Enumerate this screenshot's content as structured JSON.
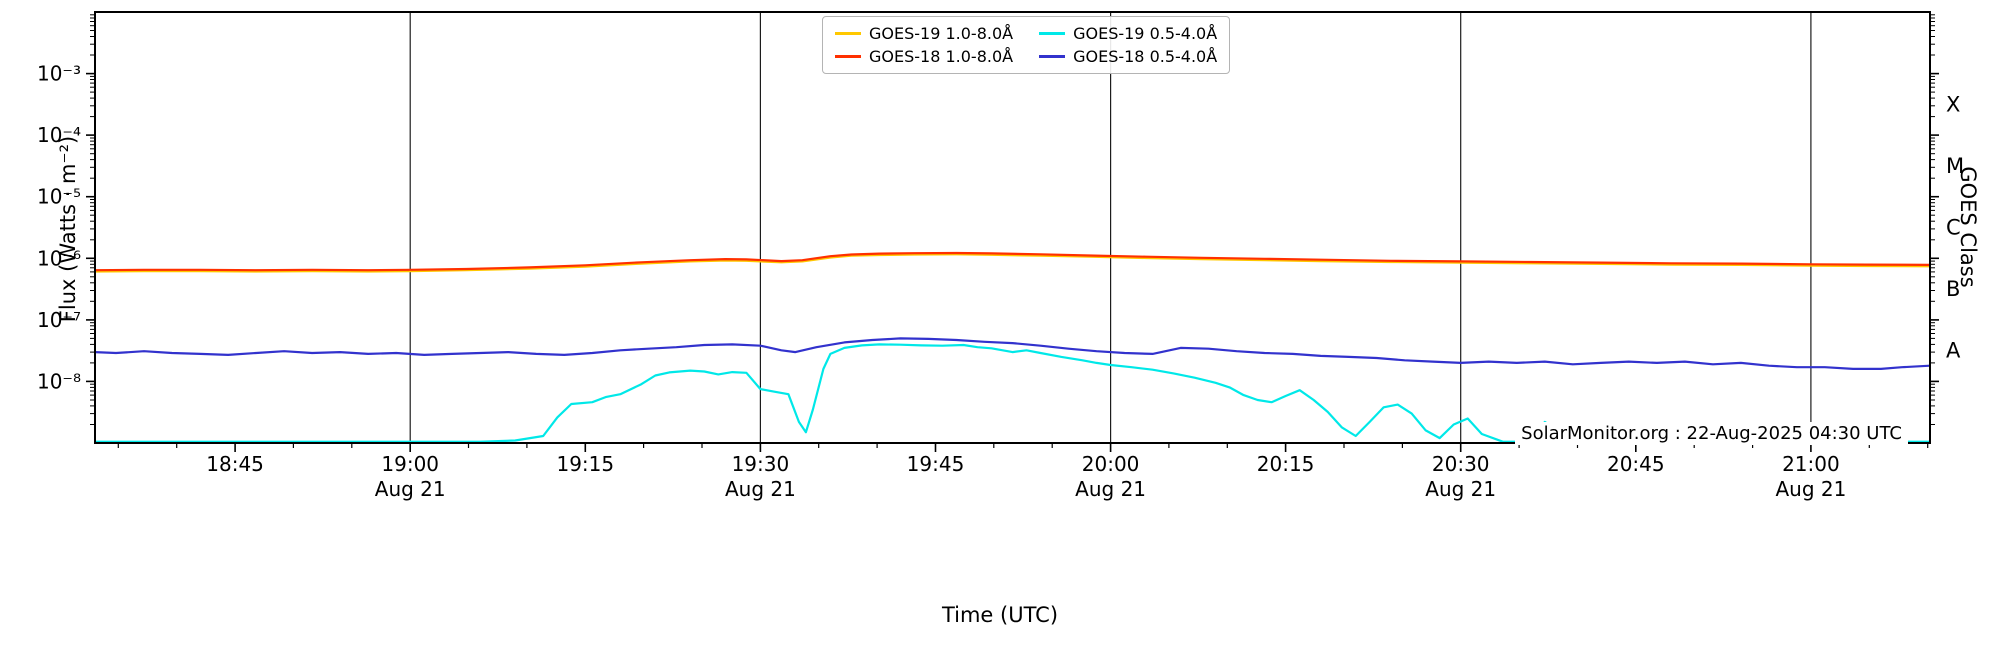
{
  "watermark": "SolarMonitor.org : 22-Aug-2025 04:30 UTC",
  "chart_data": {
    "type": "line",
    "title": "",
    "xlabel": "Time (UTC)",
    "ylabel": "Flux (Watts · m⁻²)",
    "ylabel_right": "GOES Class",
    "grid": "vertical lines at 30-minute ticks only",
    "legend_position": "upper center, 2 columns",
    "xlim": [
      18.55,
      21.17
    ],
    "ylim": [
      1e-09,
      0.01
    ],
    "y_scale": "log",
    "x_ticks": [
      {
        "t": 18.75,
        "label": "18:45",
        "sub": ""
      },
      {
        "t": 19.0,
        "label": "19:00",
        "sub": "Aug 21"
      },
      {
        "t": 19.25,
        "label": "19:15",
        "sub": ""
      },
      {
        "t": 19.5,
        "label": "19:30",
        "sub": "Aug 21"
      },
      {
        "t": 19.75,
        "label": "19:45",
        "sub": ""
      },
      {
        "t": 20.0,
        "label": "20:00",
        "sub": "Aug 21"
      },
      {
        "t": 20.25,
        "label": "20:15",
        "sub": ""
      },
      {
        "t": 20.5,
        "label": "20:30",
        "sub": "Aug 21"
      },
      {
        "t": 20.75,
        "label": "20:45",
        "sub": ""
      },
      {
        "t": 21.0,
        "label": "21:00",
        "sub": "Aug 21"
      }
    ],
    "y_ticks": [
      {
        "v": 0.001,
        "label": "10⁻³"
      },
      {
        "v": 0.0001,
        "label": "10⁻⁴"
      },
      {
        "v": 1e-05,
        "label": "10⁻⁵"
      },
      {
        "v": 1e-06,
        "label": "10⁻⁶"
      },
      {
        "v": 1e-07,
        "label": "10⁻⁷"
      },
      {
        "v": 1e-08,
        "label": "10⁻⁸"
      }
    ],
    "goes_classes": [
      {
        "label": "X",
        "v": 0.000316
      },
      {
        "label": "M",
        "v": 3.16e-05
      },
      {
        "label": "C",
        "v": 3.16e-06
      },
      {
        "label": "B",
        "v": 3.16e-07
      },
      {
        "label": "A",
        "v": 3.16e-08
      }
    ],
    "series": [
      {
        "name": "GOES-19 1.0-8.0Å",
        "color": "#ffc800",
        "points": [
          [
            18.55,
            6.1e-07
          ],
          [
            18.62,
            6.2e-07
          ],
          [
            18.7,
            6.2e-07
          ],
          [
            18.78,
            6.1e-07
          ],
          [
            18.86,
            6.2e-07
          ],
          [
            18.94,
            6.1e-07
          ],
          [
            19.0,
            6.2e-07
          ],
          [
            19.08,
            6.4e-07
          ],
          [
            19.17,
            6.8e-07
          ],
          [
            19.25,
            7.3e-07
          ],
          [
            19.33,
            8.2e-07
          ],
          [
            19.4,
            8.9e-07
          ],
          [
            19.45,
            9.2e-07
          ],
          [
            19.48,
            9.1e-07
          ],
          [
            19.53,
            8.6e-07
          ],
          [
            19.56,
            8.9e-07
          ],
          [
            19.6,
            1.03e-06
          ],
          [
            19.63,
            1.1e-06
          ],
          [
            19.67,
            1.13e-06
          ],
          [
            19.72,
            1.15e-06
          ],
          [
            19.78,
            1.16e-06
          ],
          [
            19.83,
            1.14e-06
          ],
          [
            19.9,
            1.1e-06
          ],
          [
            19.97,
            1.06e-06
          ],
          [
            20.05,
            1.01e-06
          ],
          [
            20.13,
            9.7e-07
          ],
          [
            20.22,
            9.3e-07
          ],
          [
            20.3,
            9e-07
          ],
          [
            20.4,
            8.7e-07
          ],
          [
            20.5,
            8.5e-07
          ],
          [
            20.6,
            8.3e-07
          ],
          [
            20.7,
            8.1e-07
          ],
          [
            20.8,
            7.9e-07
          ],
          [
            20.9,
            7.8e-07
          ],
          [
            21.0,
            7.6e-07
          ],
          [
            21.08,
            7.5e-07
          ],
          [
            21.17,
            7.4e-07
          ]
        ]
      },
      {
        "name": "GOES-18 1.0-8.0Å",
        "color": "#ff3000",
        "points": [
          [
            18.55,
            6.4e-07
          ],
          [
            18.62,
            6.5e-07
          ],
          [
            18.7,
            6.5e-07
          ],
          [
            18.78,
            6.4e-07
          ],
          [
            18.86,
            6.5e-07
          ],
          [
            18.94,
            6.4e-07
          ],
          [
            19.0,
            6.5e-07
          ],
          [
            19.08,
            6.7e-07
          ],
          [
            19.17,
            7.1e-07
          ],
          [
            19.25,
            7.7e-07
          ],
          [
            19.33,
            8.6e-07
          ],
          [
            19.4,
            9.3e-07
          ],
          [
            19.45,
            9.7e-07
          ],
          [
            19.48,
            9.6e-07
          ],
          [
            19.53,
            9e-07
          ],
          [
            19.56,
            9.3e-07
          ],
          [
            19.6,
            1.08e-06
          ],
          [
            19.63,
            1.15e-06
          ],
          [
            19.67,
            1.19e-06
          ],
          [
            19.72,
            1.21e-06
          ],
          [
            19.78,
            1.22e-06
          ],
          [
            19.83,
            1.2e-06
          ],
          [
            19.9,
            1.16e-06
          ],
          [
            19.97,
            1.11e-06
          ],
          [
            20.05,
            1.06e-06
          ],
          [
            20.13,
            1.02e-06
          ],
          [
            20.22,
            9.8e-07
          ],
          [
            20.3,
            9.5e-07
          ],
          [
            20.4,
            9.1e-07
          ],
          [
            20.5,
            8.9e-07
          ],
          [
            20.6,
            8.7e-07
          ],
          [
            20.7,
            8.5e-07
          ],
          [
            20.8,
            8.3e-07
          ],
          [
            20.9,
            8.2e-07
          ],
          [
            21.0,
            8e-07
          ],
          [
            21.08,
            7.9e-07
          ],
          [
            21.17,
            7.8e-07
          ]
        ]
      },
      {
        "name": "GOES-19 0.5-4.0Å",
        "color": "#00e8e8",
        "points": [
          [
            18.55,
            1.05e-09
          ],
          [
            19.1,
            1.05e-09
          ],
          [
            19.15,
            1.1e-09
          ],
          [
            19.19,
            1.3e-09
          ],
          [
            19.21,
            2.6e-09
          ],
          [
            19.23,
            4.3e-09
          ],
          [
            19.26,
            4.6e-09
          ],
          [
            19.28,
            5.6e-09
          ],
          [
            19.3,
            6.2e-09
          ],
          [
            19.33,
            9e-09
          ],
          [
            19.35,
            1.25e-08
          ],
          [
            19.37,
            1.4e-08
          ],
          [
            19.4,
            1.5e-08
          ],
          [
            19.42,
            1.45e-08
          ],
          [
            19.44,
            1.3e-08
          ],
          [
            19.46,
            1.42e-08
          ],
          [
            19.48,
            1.38e-08
          ],
          [
            19.5,
            7.5e-09
          ],
          [
            19.52,
            6.8e-09
          ],
          [
            19.54,
            6.2e-09
          ],
          [
            19.555,
            2.2e-09
          ],
          [
            19.565,
            1.5e-09
          ],
          [
            19.575,
            3.5e-09
          ],
          [
            19.59,
            1.6e-08
          ],
          [
            19.6,
            2.8e-08
          ],
          [
            19.62,
            3.5e-08
          ],
          [
            19.645,
            3.85e-08
          ],
          [
            19.67,
            4e-08
          ],
          [
            19.7,
            3.95e-08
          ],
          [
            19.73,
            3.85e-08
          ],
          [
            19.76,
            3.8e-08
          ],
          [
            19.79,
            3.9e-08
          ],
          [
            19.81,
            3.6e-08
          ],
          [
            19.83,
            3.45e-08
          ],
          [
            19.86,
            3e-08
          ],
          [
            19.88,
            3.2e-08
          ],
          [
            19.9,
            2.9e-08
          ],
          [
            19.93,
            2.5e-08
          ],
          [
            19.96,
            2.2e-08
          ],
          [
            19.98,
            2e-08
          ],
          [
            20.0,
            1.85e-08
          ],
          [
            20.03,
            1.7e-08
          ],
          [
            20.06,
            1.55e-08
          ],
          [
            20.09,
            1.35e-08
          ],
          [
            20.12,
            1.15e-08
          ],
          [
            20.15,
            9.5e-09
          ],
          [
            20.17,
            8e-09
          ],
          [
            20.19,
            6e-09
          ],
          [
            20.21,
            5e-09
          ],
          [
            20.23,
            4.6e-09
          ],
          [
            20.25,
            5.8e-09
          ],
          [
            20.27,
            7.2e-09
          ],
          [
            20.29,
            5e-09
          ],
          [
            20.31,
            3.2e-09
          ],
          [
            20.33,
            1.8e-09
          ],
          [
            20.35,
            1.3e-09
          ],
          [
            20.37,
            2.2e-09
          ],
          [
            20.39,
            3.8e-09
          ],
          [
            20.41,
            4.2e-09
          ],
          [
            20.43,
            3e-09
          ],
          [
            20.45,
            1.6e-09
          ],
          [
            20.47,
            1.2e-09
          ],
          [
            20.49,
            2e-09
          ],
          [
            20.51,
            2.5e-09
          ],
          [
            20.53,
            1.4e-09
          ],
          [
            20.56,
            1.05e-09
          ],
          [
            20.6,
            1.05e-09
          ],
          [
            20.62,
            2.2e-09
          ],
          [
            20.64,
            1.6e-09
          ],
          [
            20.67,
            1.05e-09
          ],
          [
            20.8,
            1.05e-09
          ],
          [
            21.17,
            1.05e-09
          ]
        ]
      },
      {
        "name": "GOES-18 0.5-4.0Å",
        "color": "#3232cd",
        "points": [
          [
            18.55,
            3e-08
          ],
          [
            18.58,
            2.9e-08
          ],
          [
            18.62,
            3.1e-08
          ],
          [
            18.66,
            2.9e-08
          ],
          [
            18.7,
            2.8e-08
          ],
          [
            18.74,
            2.7e-08
          ],
          [
            18.78,
            2.9e-08
          ],
          [
            18.82,
            3.1e-08
          ],
          [
            18.86,
            2.9e-08
          ],
          [
            18.9,
            3e-08
          ],
          [
            18.94,
            2.8e-08
          ],
          [
            18.98,
            2.9e-08
          ],
          [
            19.02,
            2.7e-08
          ],
          [
            19.06,
            2.8e-08
          ],
          [
            19.1,
            2.9e-08
          ],
          [
            19.14,
            3e-08
          ],
          [
            19.18,
            2.8e-08
          ],
          [
            19.22,
            2.7e-08
          ],
          [
            19.26,
            2.9e-08
          ],
          [
            19.3,
            3.2e-08
          ],
          [
            19.34,
            3.4e-08
          ],
          [
            19.38,
            3.6e-08
          ],
          [
            19.42,
            3.9e-08
          ],
          [
            19.46,
            4e-08
          ],
          [
            19.5,
            3.8e-08
          ],
          [
            19.53,
            3.2e-08
          ],
          [
            19.55,
            3e-08
          ],
          [
            19.58,
            3.6e-08
          ],
          [
            19.62,
            4.3e-08
          ],
          [
            19.66,
            4.7e-08
          ],
          [
            19.7,
            5e-08
          ],
          [
            19.74,
            4.9e-08
          ],
          [
            19.78,
            4.7e-08
          ],
          [
            19.82,
            4.4e-08
          ],
          [
            19.86,
            4.2e-08
          ],
          [
            19.9,
            3.8e-08
          ],
          [
            19.94,
            3.4e-08
          ],
          [
            19.98,
            3.1e-08
          ],
          [
            20.02,
            2.9e-08
          ],
          [
            20.06,
            2.8e-08
          ],
          [
            20.1,
            3.5e-08
          ],
          [
            20.14,
            3.4e-08
          ],
          [
            20.18,
            3.1e-08
          ],
          [
            20.22,
            2.9e-08
          ],
          [
            20.26,
            2.8e-08
          ],
          [
            20.3,
            2.6e-08
          ],
          [
            20.34,
            2.5e-08
          ],
          [
            20.38,
            2.4e-08
          ],
          [
            20.42,
            2.2e-08
          ],
          [
            20.46,
            2.1e-08
          ],
          [
            20.5,
            2e-08
          ],
          [
            20.54,
            2.1e-08
          ],
          [
            20.58,
            2e-08
          ],
          [
            20.62,
            2.1e-08
          ],
          [
            20.66,
            1.9e-08
          ],
          [
            20.7,
            2e-08
          ],
          [
            20.74,
            2.1e-08
          ],
          [
            20.78,
            2e-08
          ],
          [
            20.82,
            2.1e-08
          ],
          [
            20.86,
            1.9e-08
          ],
          [
            20.9,
            2e-08
          ],
          [
            20.94,
            1.8e-08
          ],
          [
            20.98,
            1.7e-08
          ],
          [
            21.02,
            1.7e-08
          ],
          [
            21.06,
            1.6e-08
          ],
          [
            21.1,
            1.6e-08
          ],
          [
            21.13,
            1.7e-08
          ],
          [
            21.17,
            1.8e-08
          ]
        ]
      }
    ]
  }
}
